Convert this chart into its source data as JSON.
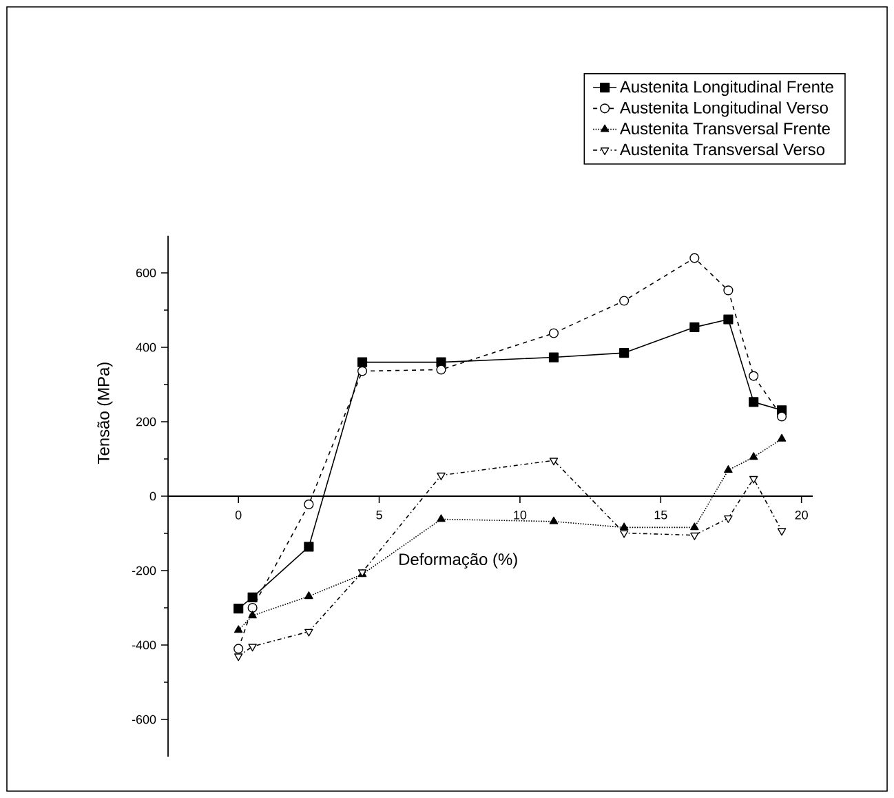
{
  "chart_data": {
    "type": "line",
    "xlabel": "Deformação (%)",
    "ylabel": "Tensão (MPa)",
    "x": [
      0,
      0.5,
      2.5,
      4.4,
      7.2,
      11.2,
      13.7,
      16.2,
      17.4,
      18.3,
      19.3
    ],
    "xlim": [
      -2.5,
      20.4
    ],
    "xticks": [
      0,
      5,
      10,
      15,
      20
    ],
    "ylim": [
      -700,
      700
    ],
    "yticks": [
      -600,
      -400,
      -200,
      0,
      200,
      400,
      600
    ],
    "grid": false,
    "legend": "top right",
    "series": [
      {
        "name": "Austenita Longitudinal Frente",
        "color": "#000000",
        "marker": "square",
        "line_style": "solid",
        "values": [
          -302,
          -272,
          -136,
          360,
          360,
          373,
          385,
          454,
          475,
          253,
          231
        ]
      },
      {
        "name": "Austenita Longitudinal Verso",
        "color": "#000000",
        "marker": "circle",
        "line_style": "dashed",
        "values": [
          -410,
          -300,
          -22,
          336,
          340,
          438,
          525,
          640,
          553,
          323,
          214
        ]
      },
      {
        "name": "Austenita Transversal Frente",
        "color": "#000000",
        "marker": "triangle",
        "line_style": "dotted",
        "values": [
          -360,
          -321,
          -269,
          -210,
          -62,
          -68,
          -84,
          -84,
          70,
          105,
          154
        ]
      },
      {
        "name": "Austenita Transversal Verso",
        "color": "#000000",
        "marker": "triangle-down",
        "line_style": "dashdot",
        "values": [
          -430,
          -404,
          -364,
          -204,
          56,
          96,
          -99,
          -105,
          -59,
          47,
          -93
        ]
      }
    ]
  }
}
